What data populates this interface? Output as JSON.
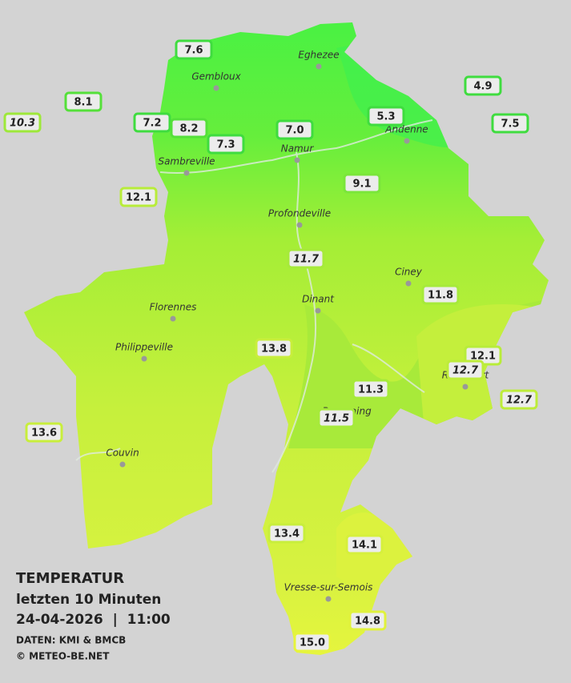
{
  "legend": {
    "title": "TEMPERATUR",
    "subtitle": "letzten 10 Minuten",
    "datetime": "24-04-2026  |  11:00",
    "source": "DATEN: KMI & BMCB",
    "copyright": "© METEO-BE.NET"
  },
  "cities": [
    "Eghezee",
    "Gembloux",
    "Andenne",
    "Namur",
    "Sambreville",
    "Profondeville",
    "Ciney",
    "Dinant",
    "Florennes",
    "Philippeville",
    "Rochefort",
    "Beauraing",
    "Couvin",
    "Vresse-sur-Semois"
  ],
  "stations": [
    {
      "value": "7.6",
      "color": "#3fdc3f",
      "italic": false
    },
    {
      "value": "4.9",
      "color": "#3fdc3f",
      "italic": false
    },
    {
      "value": "8.1",
      "color": "#55e03a",
      "italic": false
    },
    {
      "value": "10.3",
      "color": "#9ee83a",
      "italic": true
    },
    {
      "value": "7.2",
      "color": "#3fdc3f",
      "italic": false
    },
    {
      "value": "8.2",
      "color": "#55e03a",
      "italic": false
    },
    {
      "value": "7.0",
      "color": "#3fdc3f",
      "italic": false
    },
    {
      "value": "5.3",
      "color": "#3fdc3f",
      "italic": false
    },
    {
      "value": "7.5",
      "color": "#3fdc3f",
      "italic": false
    },
    {
      "value": "7.3",
      "color": "#3fdc3f",
      "italic": false
    },
    {
      "value": "9.1",
      "color": "#7ae63a",
      "italic": false
    },
    {
      "value": "12.1",
      "color": "#b8ec3a",
      "italic": false
    },
    {
      "value": "11.7",
      "color": "#a6ea3a",
      "italic": true
    },
    {
      "value": "11.8",
      "color": "#a6ea3a",
      "italic": false
    },
    {
      "value": "13.8",
      "color": "#c8ee3c",
      "italic": false
    },
    {
      "value": "12.1",
      "color": "#b8ec3a",
      "italic": false
    },
    {
      "value": "12.7",
      "color": "#bdec3a",
      "italic": true
    },
    {
      "value": "12.7",
      "color": "#bdec3a",
      "italic": true
    },
    {
      "value": "11.3",
      "color": "#a6ea3a",
      "italic": false
    },
    {
      "value": "11.5",
      "color": "#a6ea3a",
      "italic": true
    },
    {
      "value": "13.6",
      "color": "#c8ee3c",
      "italic": false
    },
    {
      "value": "13.4",
      "color": "#c8ee3c",
      "italic": false
    },
    {
      "value": "14.1",
      "color": "#d6f03c",
      "italic": false
    },
    {
      "value": "14.8",
      "color": "#e0f23c",
      "italic": false
    },
    {
      "value": "15.0",
      "color": "#e6f43c",
      "italic": false
    }
  ]
}
